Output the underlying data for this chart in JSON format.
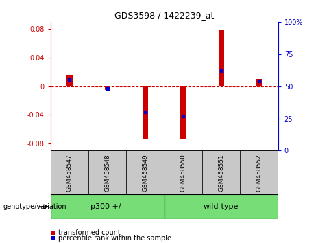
{
  "title": "GDS3598 / 1422239_at",
  "samples": [
    "GSM458547",
    "GSM458548",
    "GSM458549",
    "GSM458550",
    "GSM458551",
    "GSM458552"
  ],
  "red_bars": [
    0.016,
    -0.005,
    -0.073,
    -0.073,
    0.078,
    0.01
  ],
  "blue_dots_pct": [
    55,
    48,
    30,
    27,
    62,
    54
  ],
  "ylim": [
    -0.09,
    0.09
  ],
  "yticks_left": [
    -0.08,
    -0.04,
    0,
    0.04,
    0.08
  ],
  "yticks_right": [
    0,
    25,
    50,
    75,
    100
  ],
  "group_label": "genotype/variation",
  "group_info": [
    {
      "label": "p300 +/-",
      "start": 0,
      "end": 2
    },
    {
      "label": "wild-type",
      "start": 3,
      "end": 5
    }
  ],
  "legend_red": "transformed count",
  "legend_blue": "percentile rank within the sample",
  "bar_color": "#CC0000",
  "dot_color": "#0000CC",
  "zero_line_color": "#CC0000",
  "tick_area_color": "#C8C8C8",
  "group_area_color": "#77DD77",
  "bar_width": 0.15
}
